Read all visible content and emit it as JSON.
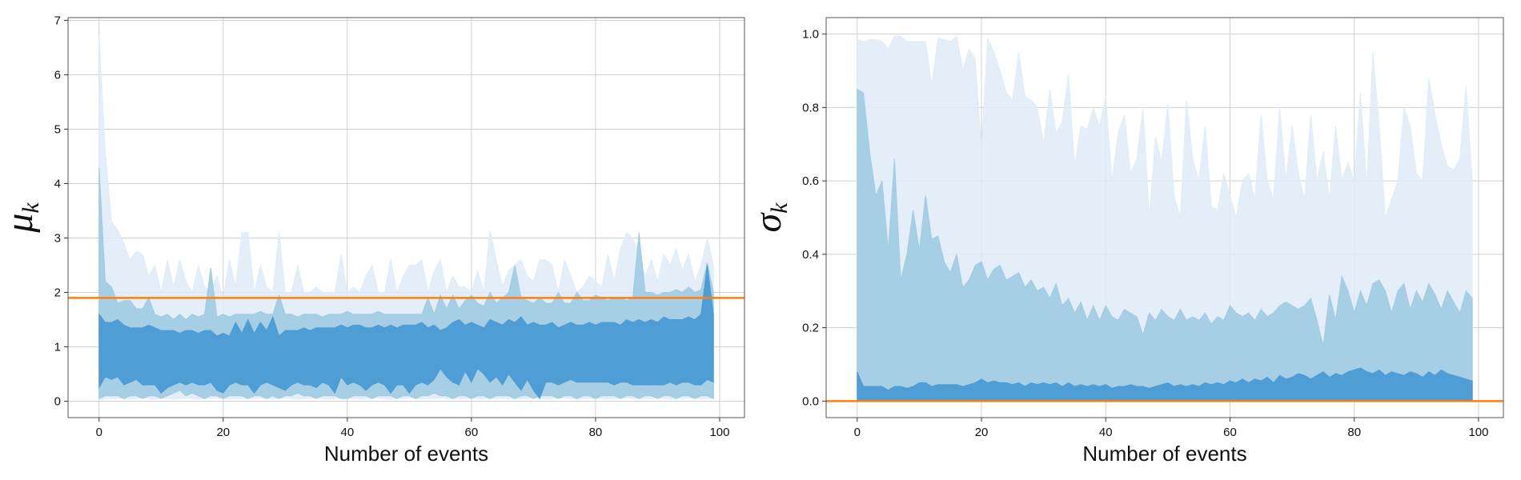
{
  "chart_data": [
    {
      "type": "area",
      "title": "",
      "ylabel_symbol": "μ",
      "ylabel_subscript": "k",
      "xlabel": "Number of events",
      "xlim": [
        -5,
        104
      ],
      "ylim": [
        -0.3,
        7.05
      ],
      "xticks": [
        0,
        20,
        40,
        60,
        80,
        100
      ],
      "yticks": [
        0,
        1,
        2,
        3,
        4,
        5,
        6,
        7
      ],
      "grid": true,
      "reference_line": {
        "y": 1.9,
        "color": "#ff7f0e"
      },
      "band_colors": [
        "#deebf7",
        "#9ecae1",
        "#4a9ad4"
      ],
      "x_range": [
        0,
        99
      ],
      "outer_band": {
        "lower": [
          0.02,
          0.05,
          0.05,
          0.06,
          0.05,
          0.04,
          0.05,
          0.06,
          0.05,
          0.03,
          0.06,
          0.05,
          0.04,
          0.05,
          0.06,
          0.05,
          0.04,
          0.05,
          0.05,
          0.06,
          0.05,
          0.04,
          0.05,
          0.05,
          0.04,
          0.05,
          0.06,
          0.05,
          0.04,
          0.05,
          0.06,
          0.05,
          0.04,
          0.05,
          0.05,
          0.06,
          0.05,
          0.04,
          0.05,
          0.05,
          0.06,
          0.05,
          0.04,
          0.05,
          0.05,
          0.06,
          0.05,
          0.04,
          0.05,
          0.05,
          0.06,
          0.05,
          0.04,
          0.05,
          0.05,
          0.06,
          0.05,
          0.04,
          0.05,
          0.05,
          0.06,
          0.05,
          0.04,
          0.05,
          0.05,
          0.06,
          0.05,
          0.04,
          0.05,
          0.05,
          0.06,
          0.05,
          0.04,
          0.05,
          0.05,
          0.06,
          0.05,
          0.04,
          0.05,
          0.05,
          0.06,
          0.05,
          0.04,
          0.05,
          0.05,
          0.06,
          0.05,
          0.04,
          0.05,
          0.05,
          0.06,
          0.05,
          0.04,
          0.05,
          0.05,
          0.06,
          0.05,
          0.04,
          0.05,
          0.04
        ],
        "upper": [
          6.7,
          4.6,
          3.3,
          3.15,
          2.9,
          2.6,
          2.75,
          2.7,
          2.3,
          2.5,
          2.0,
          2.6,
          2.1,
          2.6,
          2.2,
          2.0,
          2.5,
          2.1,
          2.0,
          2.3,
          1.9,
          2.6,
          2.1,
          3.1,
          3.1,
          2.0,
          2.5,
          2.1,
          2.0,
          3.1,
          2.0,
          2.0,
          2.5,
          2.0,
          2.0,
          2.1,
          2.0,
          2.0,
          2.0,
          2.7,
          2.0,
          2.1,
          2.0,
          2.3,
          2.5,
          2.0,
          2.0,
          2.6,
          2.0,
          2.3,
          2.5,
          2.5,
          2.6,
          2.0,
          2.4,
          2.6,
          2.0,
          2.3,
          2.1,
          2.1,
          2.0,
          2.4,
          2.0,
          3.15,
          2.6,
          2.1,
          2.4,
          2.5,
          2.6,
          2.3,
          2.2,
          2.6,
          2.6,
          2.5,
          2.0,
          2.6,
          2.3,
          2.0,
          2.1,
          2.3,
          2.2,
          2.1,
          2.7,
          2.2,
          2.8,
          3.1,
          3.0,
          2.7,
          2.3,
          2.6,
          2.2,
          2.7,
          2.5,
          2.8,
          2.4,
          2.7,
          2.2,
          2.5,
          3.0,
          2.5
        ]
      },
      "middle_band": {
        "lower": [
          0.05,
          0.1,
          0.1,
          0.1,
          0.05,
          0.1,
          0.1,
          0.05,
          0.1,
          0.1,
          0.05,
          0.1,
          0.15,
          0.2,
          0.1,
          0.15,
          0.1,
          0.05,
          0.1,
          0.1,
          0.05,
          0.1,
          0.1,
          0.1,
          0.05,
          0.1,
          0.1,
          0.05,
          0.1,
          0.05,
          0.1,
          0.1,
          0.15,
          0.1,
          0.1,
          0.05,
          0.1,
          0.1,
          0.1,
          0.05,
          0.05,
          0.1,
          0.1,
          0.1,
          0.05,
          0.1,
          0.1,
          0.1,
          0.05,
          0.1,
          0.1,
          0.05,
          0.1,
          0.1,
          0.15,
          0.1,
          0.1,
          0.05,
          0.1,
          0.1,
          0.05,
          0.1,
          0.1,
          0.05,
          0.1,
          0.1,
          0.1,
          0.05,
          0.1,
          0.1,
          0.05,
          0.1,
          0.1,
          0.1,
          0.05,
          0.1,
          0.1,
          0.05,
          0.1,
          0.1,
          0.05,
          0.1,
          0.1,
          0.1,
          0.05,
          0.1,
          0.1,
          0.05,
          0.1,
          0.1,
          0.05,
          0.1,
          0.1,
          0.05,
          0.1,
          0.1,
          0.05,
          0.1,
          0.1,
          0.05
        ],
        "upper": [
          4.3,
          2.2,
          2.1,
          1.8,
          1.85,
          1.85,
          1.7,
          1.7,
          1.9,
          1.6,
          1.55,
          1.6,
          1.5,
          1.6,
          1.5,
          1.6,
          1.55,
          1.6,
          2.45,
          1.55,
          1.6,
          1.55,
          1.6,
          1.6,
          1.6,
          1.6,
          1.65,
          1.6,
          1.6,
          1.95,
          1.6,
          1.6,
          1.55,
          1.6,
          1.6,
          1.6,
          1.55,
          1.6,
          1.6,
          1.6,
          1.65,
          1.6,
          1.6,
          1.6,
          1.6,
          1.65,
          1.6,
          1.6,
          1.6,
          1.6,
          1.6,
          1.6,
          1.6,
          1.9,
          1.6,
          1.95,
          1.7,
          1.95,
          1.7,
          1.85,
          1.95,
          1.8,
          1.75,
          2.0,
          1.8,
          1.9,
          2.0,
          2.5,
          1.9,
          1.85,
          1.8,
          1.9,
          1.8,
          1.8,
          2.0,
          1.8,
          1.8,
          2.0,
          1.85,
          1.85,
          1.95,
          1.9,
          1.85,
          1.9,
          1.9,
          1.85,
          1.9,
          3.1,
          2.0,
          2.0,
          1.95,
          2.0,
          2.0,
          2.05,
          2.0,
          2.1,
          2.0,
          2.05,
          2.55,
          2.0
        ]
      },
      "inner_band": {
        "lower": [
          0.25,
          0.45,
          0.4,
          0.45,
          0.3,
          0.35,
          0.4,
          0.3,
          0.3,
          0.3,
          0.15,
          0.25,
          0.3,
          0.35,
          0.3,
          0.35,
          0.3,
          0.3,
          0.35,
          0.2,
          0.15,
          0.3,
          0.35,
          0.3,
          0.3,
          0.15,
          0.3,
          0.35,
          0.3,
          0.25,
          0.2,
          0.3,
          0.35,
          0.3,
          0.3,
          0.25,
          0.35,
          0.3,
          0.15,
          0.45,
          0.3,
          0.35,
          0.3,
          0.2,
          0.3,
          0.35,
          0.3,
          0.15,
          0.3,
          0.3,
          0.15,
          0.3,
          0.35,
          0.3,
          0.4,
          0.6,
          0.45,
          0.35,
          0.3,
          0.55,
          0.35,
          0.6,
          0.5,
          0.35,
          0.45,
          0.3,
          0.5,
          0.35,
          0.2,
          0.4,
          0.2,
          0.05,
          0.35,
          0.35,
          0.3,
          0.35,
          0.4,
          0.35,
          0.35,
          0.35,
          0.35,
          0.35,
          0.35,
          0.3,
          0.35,
          0.35,
          0.3,
          0.3,
          0.3,
          0.3,
          0.3,
          0.3,
          0.35,
          0.3,
          0.35,
          0.35,
          0.3,
          0.3,
          0.4,
          0.35
        ],
        "upper": [
          1.6,
          1.45,
          1.45,
          1.5,
          1.4,
          1.35,
          1.35,
          1.35,
          1.4,
          1.35,
          1.3,
          1.3,
          1.3,
          1.25,
          1.3,
          1.3,
          1.25,
          1.3,
          1.3,
          1.2,
          1.25,
          1.2,
          1.45,
          1.25,
          1.5,
          1.25,
          1.45,
          1.3,
          1.55,
          1.2,
          1.3,
          1.3,
          1.3,
          1.35,
          1.3,
          1.35,
          1.35,
          1.35,
          1.35,
          1.4,
          1.35,
          1.4,
          1.4,
          1.35,
          1.35,
          1.4,
          1.35,
          1.4,
          1.35,
          1.4,
          1.4,
          1.4,
          1.45,
          1.35,
          1.4,
          1.3,
          1.35,
          1.45,
          1.5,
          1.4,
          1.45,
          1.4,
          1.35,
          1.5,
          1.45,
          1.4,
          1.5,
          1.45,
          1.55,
          1.4,
          1.45,
          1.4,
          1.4,
          1.45,
          1.35,
          1.4,
          1.45,
          1.4,
          1.4,
          1.45,
          1.4,
          1.45,
          1.45,
          1.45,
          1.4,
          1.5,
          1.45,
          1.5,
          1.45,
          1.5,
          1.45,
          1.55,
          1.5,
          1.5,
          1.5,
          1.55,
          1.5,
          1.6,
          2.5,
          1.6
        ]
      }
    },
    {
      "type": "area",
      "title": "",
      "ylabel_symbol": "σ",
      "ylabel_subscript": "k",
      "xlabel": "Number of events",
      "xlim": [
        -5,
        104
      ],
      "ylim": [
        -0.045,
        1.045
      ],
      "xticks": [
        0,
        20,
        40,
        60,
        80,
        100
      ],
      "yticks": [
        0.0,
        0.2,
        0.4,
        0.6,
        0.8,
        1.0
      ],
      "grid": true,
      "reference_line": {
        "y": 0.0,
        "color": "#ff7f0e"
      },
      "band_colors": [
        "#deebf7",
        "#9ecae1",
        "#4a9ad4"
      ],
      "x_range": [
        0,
        99
      ],
      "outer_band": {
        "lower": [
          0,
          0,
          0,
          0,
          0,
          0,
          0,
          0,
          0,
          0,
          0,
          0,
          0,
          0,
          0,
          0,
          0,
          0,
          0,
          0,
          0,
          0,
          0,
          0,
          0,
          0,
          0,
          0,
          0,
          0,
          0,
          0,
          0,
          0,
          0,
          0,
          0,
          0,
          0,
          0,
          0,
          0,
          0,
          0,
          0,
          0,
          0,
          0,
          0,
          0,
          0,
          0,
          0,
          0,
          0,
          0,
          0,
          0,
          0,
          0,
          0,
          0,
          0,
          0,
          0,
          0,
          0,
          0,
          0,
          0,
          0,
          0,
          0,
          0,
          0,
          0,
          0,
          0,
          0,
          0,
          0,
          0,
          0,
          0,
          0,
          0,
          0,
          0,
          0,
          0,
          0,
          0,
          0,
          0,
          0,
          0,
          0,
          0,
          0,
          0
        ],
        "upper": [
          0.985,
          0.98,
          0.985,
          0.985,
          0.98,
          0.96,
          0.995,
          0.995,
          0.98,
          0.98,
          0.98,
          0.98,
          0.86,
          0.99,
          0.985,
          0.98,
          0.995,
          0.9,
          0.96,
          0.93,
          0.69,
          0.99,
          0.95,
          0.9,
          0.84,
          0.82,
          0.95,
          0.83,
          0.82,
          0.8,
          0.7,
          0.85,
          0.73,
          0.76,
          0.89,
          0.64,
          0.75,
          0.74,
          0.8,
          0.75,
          0.83,
          0.6,
          0.73,
          0.78,
          0.62,
          0.66,
          0.8,
          0.5,
          0.72,
          0.65,
          0.81,
          0.56,
          0.5,
          0.82,
          0.66,
          0.6,
          0.75,
          0.53,
          0.52,
          0.62,
          0.56,
          0.5,
          0.6,
          0.62,
          0.55,
          0.78,
          0.6,
          0.55,
          0.8,
          0.6,
          0.75,
          0.62,
          0.55,
          0.78,
          0.6,
          0.68,
          0.55,
          0.75,
          0.6,
          0.65,
          0.6,
          0.84,
          0.58,
          0.95,
          0.75,
          0.5,
          0.55,
          0.6,
          0.8,
          0.75,
          0.62,
          0.6,
          0.88,
          0.78,
          0.7,
          0.64,
          0.63,
          0.66,
          0.86,
          0.6
        ]
      },
      "middle_band": {
        "lower": [
          0,
          0,
          0,
          0,
          0,
          0,
          0,
          0,
          0,
          0,
          0,
          0,
          0,
          0,
          0,
          0,
          0,
          0,
          0,
          0,
          0,
          0,
          0,
          0,
          0,
          0,
          0,
          0,
          0,
          0,
          0,
          0,
          0,
          0,
          0,
          0,
          0,
          0,
          0,
          0,
          0,
          0,
          0,
          0,
          0,
          0,
          0,
          0,
          0,
          0,
          0,
          0,
          0,
          0,
          0,
          0,
          0,
          0,
          0,
          0,
          0,
          0,
          0,
          0,
          0,
          0,
          0,
          0,
          0,
          0,
          0,
          0,
          0,
          0,
          0,
          0,
          0,
          0,
          0,
          0,
          0,
          0,
          0,
          0,
          0,
          0,
          0,
          0,
          0,
          0,
          0,
          0,
          0,
          0,
          0,
          0,
          0,
          0,
          0,
          0
        ],
        "upper": [
          0.85,
          0.84,
          0.68,
          0.56,
          0.6,
          0.41,
          0.66,
          0.33,
          0.4,
          0.52,
          0.41,
          0.56,
          0.44,
          0.45,
          0.38,
          0.35,
          0.4,
          0.31,
          0.33,
          0.37,
          0.38,
          0.33,
          0.36,
          0.37,
          0.33,
          0.34,
          0.35,
          0.31,
          0.33,
          0.3,
          0.31,
          0.28,
          0.32,
          0.26,
          0.28,
          0.24,
          0.27,
          0.22,
          0.26,
          0.22,
          0.26,
          0.23,
          0.22,
          0.25,
          0.24,
          0.23,
          0.18,
          0.24,
          0.22,
          0.25,
          0.23,
          0.22,
          0.25,
          0.22,
          0.23,
          0.22,
          0.24,
          0.21,
          0.23,
          0.22,
          0.26,
          0.24,
          0.23,
          0.24,
          0.22,
          0.25,
          0.23,
          0.24,
          0.26,
          0.27,
          0.26,
          0.25,
          0.26,
          0.28,
          0.22,
          0.15,
          0.29,
          0.22,
          0.34,
          0.3,
          0.24,
          0.3,
          0.26,
          0.32,
          0.33,
          0.3,
          0.24,
          0.3,
          0.32,
          0.25,
          0.3,
          0.27,
          0.32,
          0.29,
          0.25,
          0.3,
          0.27,
          0.24,
          0.3,
          0.28
        ]
      },
      "inner_band": {
        "lower": [
          0,
          0,
          0,
          0,
          0,
          0,
          0,
          0,
          0,
          0,
          0,
          0,
          0,
          0,
          0,
          0,
          0,
          0,
          0,
          0,
          0,
          0,
          0,
          0,
          0,
          0,
          0,
          0,
          0,
          0,
          0,
          0,
          0,
          0,
          0,
          0,
          0,
          0,
          0,
          0,
          0,
          0,
          0,
          0,
          0,
          0,
          0,
          0,
          0,
          0,
          0,
          0,
          0,
          0,
          0,
          0,
          0,
          0,
          0,
          0,
          0,
          0,
          0,
          0,
          0,
          0,
          0,
          0,
          0,
          0,
          0,
          0,
          0,
          0,
          0,
          0,
          0,
          0,
          0,
          0,
          0,
          0,
          0,
          0,
          0,
          0,
          0,
          0,
          0,
          0,
          0,
          0,
          0,
          0,
          0,
          0,
          0,
          0,
          0,
          0
        ],
        "upper": [
          0.08,
          0.04,
          0.04,
          0.04,
          0.04,
          0.03,
          0.04,
          0.04,
          0.035,
          0.04,
          0.05,
          0.05,
          0.04,
          0.045,
          0.045,
          0.045,
          0.045,
          0.04,
          0.045,
          0.05,
          0.06,
          0.05,
          0.055,
          0.05,
          0.05,
          0.045,
          0.05,
          0.04,
          0.05,
          0.045,
          0.05,
          0.045,
          0.05,
          0.04,
          0.05,
          0.04,
          0.045,
          0.04,
          0.045,
          0.04,
          0.045,
          0.035,
          0.04,
          0.04,
          0.045,
          0.04,
          0.04,
          0.035,
          0.04,
          0.045,
          0.05,
          0.04,
          0.045,
          0.04,
          0.045,
          0.04,
          0.05,
          0.045,
          0.05,
          0.045,
          0.055,
          0.05,
          0.06,
          0.05,
          0.06,
          0.055,
          0.065,
          0.05,
          0.07,
          0.06,
          0.065,
          0.075,
          0.07,
          0.06,
          0.07,
          0.08,
          0.065,
          0.075,
          0.07,
          0.08,
          0.085,
          0.09,
          0.08,
          0.075,
          0.085,
          0.07,
          0.08,
          0.075,
          0.07,
          0.08,
          0.075,
          0.065,
          0.08,
          0.07,
          0.085,
          0.075,
          0.07,
          0.065,
          0.06,
          0.055
        ]
      }
    }
  ]
}
